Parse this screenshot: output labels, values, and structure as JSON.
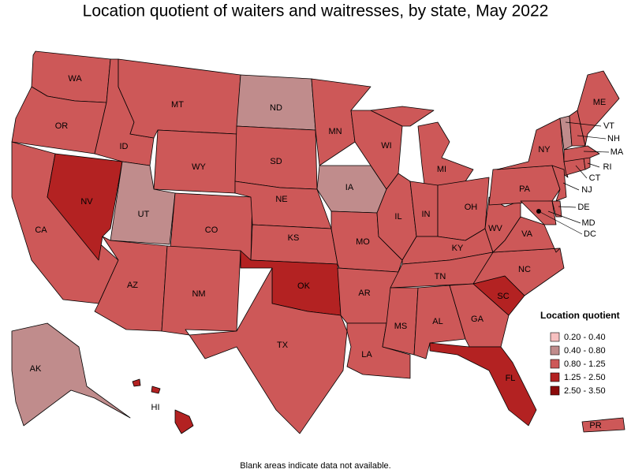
{
  "title": "Location quotient of waiters and waitresses, by state, May 2022",
  "note": "Blank areas indicate data not available.",
  "legend": {
    "title": "Location quotient",
    "bins": [
      {
        "label": "0.20 - 0.40",
        "color": "#f7c0c0"
      },
      {
        "label": "0.40 - 0.80",
        "color": "#c08c8c"
      },
      {
        "label": "0.80 - 1.25",
        "color": "#cd5858"
      },
      {
        "label": "1.25 - 2.50",
        "color": "#b32222"
      },
      {
        "label": "2.50 - 3.50",
        "color": "#8b0a0a"
      }
    ]
  },
  "states": [
    {
      "label": "WA",
      "bin": 2
    },
    {
      "label": "OR",
      "bin": 2
    },
    {
      "label": "CA",
      "bin": 2
    },
    {
      "label": "NV",
      "bin": 3
    },
    {
      "label": "ID",
      "bin": 2
    },
    {
      "label": "MT",
      "bin": 2
    },
    {
      "label": "WY",
      "bin": 2
    },
    {
      "label": "UT",
      "bin": 1
    },
    {
      "label": "CO",
      "bin": 2
    },
    {
      "label": "AZ",
      "bin": 2
    },
    {
      "label": "NM",
      "bin": 2
    },
    {
      "label": "ND",
      "bin": 1
    },
    {
      "label": "SD",
      "bin": 2
    },
    {
      "label": "NE",
      "bin": 2
    },
    {
      "label": "KS",
      "bin": 2
    },
    {
      "label": "OK",
      "bin": 3
    },
    {
      "label": "TX",
      "bin": 2
    },
    {
      "label": "MN",
      "bin": 2
    },
    {
      "label": "IA",
      "bin": 1
    },
    {
      "label": "MO",
      "bin": 2
    },
    {
      "label": "AR",
      "bin": 2
    },
    {
      "label": "LA",
      "bin": 2
    },
    {
      "label": "WI",
      "bin": 2
    },
    {
      "label": "IL",
      "bin": 2
    },
    {
      "label": "MI",
      "bin": 2
    },
    {
      "label": "IN",
      "bin": 2
    },
    {
      "label": "OH",
      "bin": 2
    },
    {
      "label": "KY",
      "bin": 2
    },
    {
      "label": "TN",
      "bin": 2
    },
    {
      "label": "MS",
      "bin": 2
    },
    {
      "label": "AL",
      "bin": 2
    },
    {
      "label": "GA",
      "bin": 2
    },
    {
      "label": "FL",
      "bin": 3
    },
    {
      "label": "SC",
      "bin": 3
    },
    {
      "label": "NC",
      "bin": 2
    },
    {
      "label": "VA",
      "bin": 2
    },
    {
      "label": "WV",
      "bin": 2
    },
    {
      "label": "PA",
      "bin": 2
    },
    {
      "label": "NY",
      "bin": 2
    },
    {
      "label": "MD",
      "bin": 2
    },
    {
      "label": "DE",
      "bin": 2
    },
    {
      "label": "NJ",
      "bin": 2
    },
    {
      "label": "CT",
      "bin": 2
    },
    {
      "label": "RI",
      "bin": 2
    },
    {
      "label": "MA",
      "bin": 2
    },
    {
      "label": "VT",
      "bin": 1
    },
    {
      "label": "NH",
      "bin": 2
    },
    {
      "label": "ME",
      "bin": 2
    },
    {
      "label": "AK",
      "bin": 1
    },
    {
      "label": "HI",
      "bin": 3
    },
    {
      "label": "PR",
      "bin": 2
    },
    {
      "label": "DC",
      "bin": 2
    }
  ]
}
